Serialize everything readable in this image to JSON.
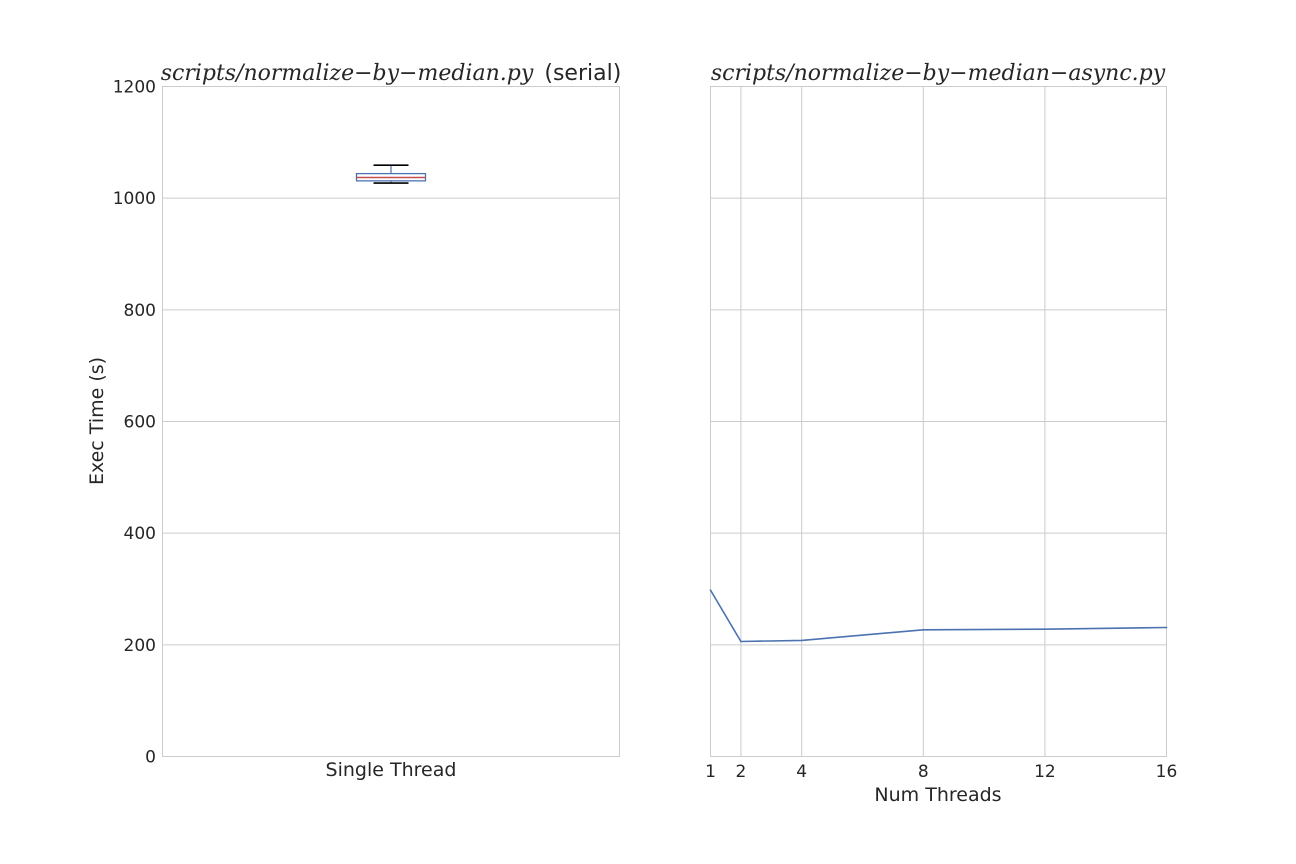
{
  "chart_data": [
    {
      "type": "box",
      "title": "scripts/normalize−by−median.py",
      "title_suffix": "(serial)",
      "ylabel": "Exec Time (s)",
      "ylim": [
        0,
        1200
      ],
      "yticks": [
        0,
        200,
        400,
        600,
        800,
        1000,
        1200
      ],
      "categories": [
        "Single Thread"
      ],
      "box": {
        "whisker_low": 1027,
        "q1": 1031,
        "median": 1037,
        "q3": 1044,
        "whisker_high": 1059
      },
      "colors": {
        "box": "#4c72b0",
        "median": "#c44e52",
        "whisker": "#000000"
      },
      "grid": "y"
    },
    {
      "type": "line",
      "title": "scripts/normalize−by−median−async.py",
      "xlabel": "Num Threads",
      "ylim": [
        0,
        1200
      ],
      "xlim": [
        1,
        16
      ],
      "xticks": [
        1,
        2,
        4,
        8,
        12,
        16
      ],
      "x": [
        1,
        2,
        4,
        8,
        12,
        16
      ],
      "series": [
        {
          "values": [
            298,
            206,
            208,
            227,
            228,
            231
          ]
        }
      ],
      "colors": {
        "line": "#4c72b0"
      },
      "grid": "both"
    }
  ]
}
